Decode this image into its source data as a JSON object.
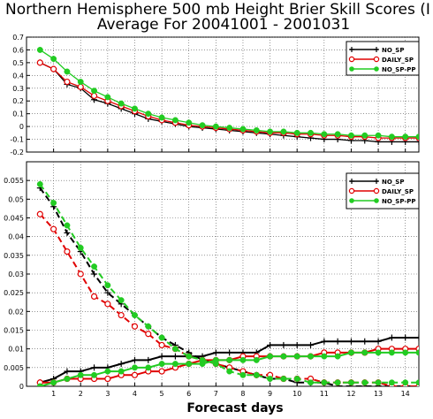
{
  "title_line1": "Northern Hemisphere 500 mb Height Brier Skill Scores (I",
  "title_line2": "Average For 20041001 - 2001031",
  "xlabel": "Forecast days",
  "colors": {
    "NO_SP": "#000000",
    "DAILY_SP": "#e00000",
    "NO_SP-PP": "#22cc22"
  },
  "chart_data": [
    {
      "type": "line",
      "xlim": [
        0,
        14.5
      ],
      "ylim": [
        -0.2,
        0.7
      ],
      "yticks": [
        -0.2,
        -0.1,
        0,
        0.1,
        0.2,
        0.3,
        0.4,
        0.5,
        0.6,
        0.7
      ],
      "ytick_labels": [
        "-0.2",
        "-0.1",
        "0",
        "0.1",
        "0.2",
        "0.3",
        "0.4",
        "0.5",
        "0.6",
        "0.7"
      ],
      "grid": true,
      "legend": "top-right",
      "x": [
        0.5,
        1,
        1.5,
        2,
        2.5,
        3,
        3.5,
        4,
        4.5,
        5,
        5.5,
        6,
        6.5,
        7,
        7.5,
        8,
        8.5,
        9,
        9.5,
        10,
        10.5,
        11,
        11.5,
        12,
        12.5,
        13,
        13.5,
        14,
        14.5
      ],
      "series": [
        {
          "name": "NO_SP",
          "marker": "plus",
          "values": [
            0.5,
            0.45,
            0.33,
            0.3,
            0.21,
            0.18,
            0.14,
            0.1,
            0.06,
            0.04,
            0.02,
            0.0,
            -0.01,
            -0.02,
            -0.03,
            -0.04,
            -0.05,
            -0.06,
            -0.07,
            -0.08,
            -0.09,
            -0.1,
            -0.1,
            -0.11,
            -0.11,
            -0.12,
            -0.12,
            -0.12,
            -0.12
          ]
        },
        {
          "name": "DAILY_SP",
          "marker": "circle",
          "values": [
            0.5,
            0.45,
            0.35,
            0.31,
            0.24,
            0.2,
            0.16,
            0.12,
            0.08,
            0.05,
            0.03,
            0.01,
            0.0,
            -0.01,
            -0.02,
            -0.03,
            -0.04,
            -0.05,
            -0.05,
            -0.06,
            -0.06,
            -0.07,
            -0.07,
            -0.08,
            -0.08,
            -0.09,
            -0.09,
            -0.09,
            -0.09
          ]
        },
        {
          "name": "NO_SP-PP",
          "marker": "dot",
          "values": [
            0.6,
            0.53,
            0.43,
            0.35,
            0.28,
            0.23,
            0.18,
            0.14,
            0.1,
            0.07,
            0.05,
            0.03,
            0.01,
            0.0,
            -0.01,
            -0.02,
            -0.03,
            -0.04,
            -0.04,
            -0.05,
            -0.05,
            -0.06,
            -0.06,
            -0.07,
            -0.07,
            -0.07,
            -0.08,
            -0.08,
            -0.08
          ]
        }
      ]
    },
    {
      "type": "line",
      "xlim": [
        0,
        14.5
      ],
      "ylim": [
        0,
        0.06
      ],
      "yticks": [
        0,
        0.005,
        0.01,
        0.015,
        0.02,
        0.025,
        0.03,
        0.035,
        0.04,
        0.045,
        0.05,
        0.055
      ],
      "ytick_labels": [
        "0",
        "0.005",
        "0.01",
        "0.015",
        "0.02",
        "0.025",
        "0.03",
        "0.035",
        "0.04",
        "0.045",
        "0.05",
        "0.055"
      ],
      "xticks": [
        1,
        2,
        3,
        4,
        5,
        6,
        7,
        8,
        9,
        10,
        11,
        12,
        13,
        14
      ],
      "grid": true,
      "legend": "top-right",
      "x": [
        0.5,
        1,
        1.5,
        2,
        2.5,
        3,
        3.5,
        4,
        4.5,
        5,
        5.5,
        6,
        6.5,
        7,
        7.5,
        8,
        8.5,
        9,
        9.5,
        10,
        10.5,
        11,
        11.5,
        12,
        12.5,
        13,
        13.5,
        14,
        14.5
      ],
      "series": [
        {
          "name": "NO_SP",
          "marker": "plus",
          "line": "solid",
          "values": [
            0.001,
            0.002,
            0.004,
            0.004,
            0.005,
            0.005,
            0.006,
            0.007,
            0.007,
            0.008,
            0.008,
            0.008,
            0.008,
            0.009,
            0.009,
            0.009,
            0.009,
            0.011,
            0.011,
            0.011,
            0.011,
            0.012,
            0.012,
            0.012,
            0.012,
            0.012,
            0.013,
            0.013,
            0.013
          ]
        },
        {
          "name": "DAILY_SP",
          "marker": "circle",
          "line": "solid",
          "values": [
            0.001,
            0.001,
            0.002,
            0.002,
            0.002,
            0.002,
            0.003,
            0.003,
            0.004,
            0.004,
            0.005,
            0.006,
            0.007,
            0.007,
            0.007,
            0.008,
            0.008,
            0.008,
            0.008,
            0.008,
            0.008,
            0.009,
            0.009,
            0.009,
            0.009,
            0.01,
            0.01,
            0.01,
            0.01
          ]
        },
        {
          "name": "NO_SP",
          "marker": "plus",
          "line": "dashed",
          "values": [
            0.053,
            0.048,
            0.041,
            0.036,
            0.03,
            0.025,
            0.022,
            0.019,
            0.016,
            0.013,
            0.011,
            0.009,
            0.007,
            0.006,
            0.005,
            0.004,
            0.003,
            0.002,
            0.002,
            0.001,
            0.001,
            0.001,
            0.0,
            0.0,
            0.0,
            0.0,
            0.0,
            0.0,
            0.0
          ]
        },
        {
          "name": "DAILY_SP",
          "marker": "circle",
          "line": "dashed",
          "values": [
            0.046,
            0.042,
            0.036,
            0.03,
            0.024,
            0.022,
            0.019,
            0.016,
            0.014,
            0.011,
            0.01,
            0.008,
            0.007,
            0.006,
            0.005,
            0.004,
            0.003,
            0.003,
            0.002,
            0.002,
            0.002,
            0.001,
            0.001,
            0.001,
            0.001,
            0.001,
            0.0,
            0.0,
            0.0
          ]
        },
        {
          "name": "NO_SP-PP",
          "marker": "dot",
          "line": "dashed",
          "values": [
            0.054,
            0.049,
            0.043,
            0.037,
            0.032,
            0.027,
            0.023,
            0.019,
            0.016,
            0.013,
            0.01,
            0.008,
            0.007,
            0.006,
            0.004,
            0.003,
            0.003,
            0.002,
            0.002,
            0.002,
            0.001,
            0.001,
            0.001,
            0.001,
            0.001,
            0.001,
            0.001,
            0.001,
            0.001
          ]
        },
        {
          "name": "NO_SP-PP",
          "marker": "dot",
          "line": "solid",
          "values": [
            0.0,
            0.001,
            0.002,
            0.003,
            0.003,
            0.004,
            0.004,
            0.005,
            0.005,
            0.006,
            0.006,
            0.006,
            0.006,
            0.007,
            0.007,
            0.007,
            0.007,
            0.008,
            0.008,
            0.008,
            0.008,
            0.008,
            0.008,
            0.009,
            0.009,
            0.009,
            0.009,
            0.009,
            0.009
          ]
        }
      ]
    }
  ]
}
